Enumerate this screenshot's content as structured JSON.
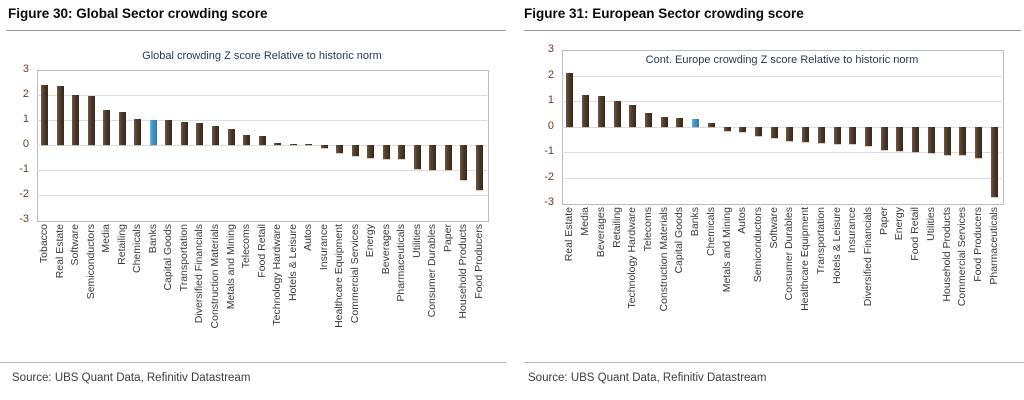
{
  "chart_data": [
    {
      "type": "bar",
      "figure_title": "Figure 30: Global Sector crowding score",
      "title": "Global crowding Z score Relative to historic norm",
      "categories": [
        "Tobacco",
        "Real Estate",
        "Software",
        "Semiconductors",
        "Media",
        "Retailing",
        "Chemicals",
        "Banks",
        "Capital Goods",
        "Transportation",
        "Diversified Financials",
        "Construction Materials",
        "Metals and Mining",
        "Telecoms",
        "Food Retail",
        "Technology Hardware",
        "Hotels & Leisure",
        "Autos",
        "Insurance",
        "Healthcare Equipment",
        "Commercial Services",
        "Energy",
        "Beverages",
        "Pharmaceuticals",
        "Utilities",
        "Consumer Durables",
        "Paper",
        "Household Products",
        "Food Producers"
      ],
      "values": [
        2.4,
        2.37,
        2.0,
        1.97,
        1.4,
        1.3,
        1.05,
        1.0,
        1.0,
        0.9,
        0.88,
        0.75,
        0.62,
        0.4,
        0.35,
        0.07,
        0.05,
        0.04,
        -0.12,
        -0.33,
        -0.45,
        -0.5,
        -0.55,
        -0.57,
        -0.95,
        -1.0,
        -1.0,
        -1.4,
        -1.8
      ],
      "highlight": {
        "category": "Banks",
        "color": "#3f94cd"
      },
      "bar_color": "#4a3829",
      "xlabel": "",
      "ylabel": "",
      "ylim": [
        -3,
        3
      ],
      "yticks": [
        3,
        2,
        1,
        0,
        -1,
        -2,
        -3
      ],
      "grid": true,
      "legend": "none",
      "source": "Source: UBS Quant Data, Refinitiv Datastream"
    },
    {
      "type": "bar",
      "figure_title": "Figure 31: European Sector crowding score",
      "title": "Cont. Europe crowding Z score Relative to historic norm",
      "categories": [
        "Real Estate",
        "Media",
        "Beverages",
        "Retailing",
        "Technology Hardware",
        "Telecoms",
        "Construction Materials",
        "Capital Goods",
        "Banks",
        "Chemicals",
        "Metals and Mining",
        "Autos",
        "Semiconductors",
        "Software",
        "Consumer Durables",
        "Healthcare Equipment",
        "Transportation",
        "Hotels & Leisure",
        "Insurance",
        "Diversified Financials",
        "Paper",
        "Energy",
        "Food Retail",
        "Utilities",
        "Household Products",
        "Commercial Services",
        "Food Producers",
        "Pharmaceuticals"
      ],
      "values": [
        2.1,
        1.25,
        1.2,
        1.0,
        0.85,
        0.55,
        0.4,
        0.35,
        0.3,
        0.15,
        -0.15,
        -0.2,
        -0.35,
        -0.45,
        -0.55,
        -0.6,
        -0.63,
        -0.65,
        -0.65,
        -0.73,
        -0.9,
        -0.95,
        -0.97,
        -1.0,
        -1.1,
        -1.1,
        -1.2,
        -2.75
      ],
      "highlight": {
        "category": "Banks",
        "color": "#3f94cd"
      },
      "bar_color": "#4a3829",
      "xlabel": "",
      "ylabel": "",
      "ylim": [
        -3,
        3
      ],
      "yticks": [
        3,
        2,
        1,
        0,
        -1,
        -2,
        -3
      ],
      "grid": true,
      "legend": "none",
      "source": "Source: UBS Quant Data, Refinitiv Datastream"
    }
  ]
}
